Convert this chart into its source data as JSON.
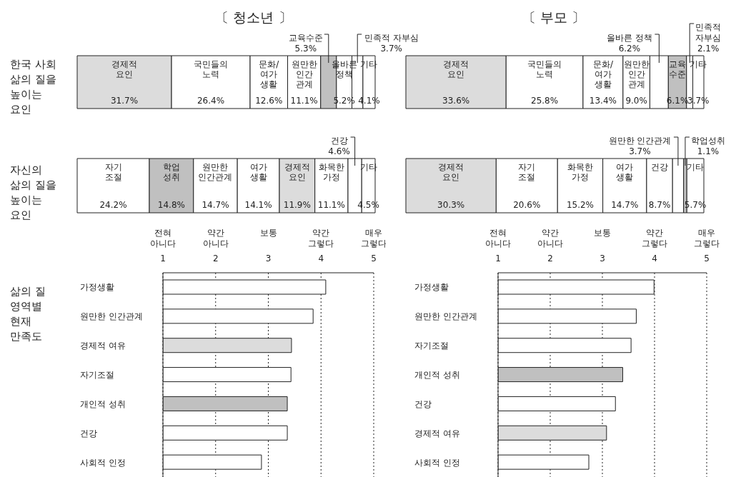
{
  "chart_data": [
    {
      "type": "bar",
      "orientation": "horizontal",
      "stacked": true,
      "title": "〔 청소년 〕",
      "ylabel": "한국 사회\n삶의 질을\n높이는\n요인",
      "categories": [
        null
      ],
      "series": [
        {
          "name": "경제적\n요인",
          "color": "#dcdcdc",
          "values": [
            31.7
          ],
          "value_labels": [
            "31.7%"
          ]
        },
        {
          "name": "국민들의\n노력",
          "color": "#ffffff",
          "values": [
            26.4
          ],
          "value_labels": [
            "26.4%"
          ]
        },
        {
          "name": "문화/\n여가\n생활",
          "color": "#ffffff",
          "values": [
            12.6
          ],
          "value_labels": [
            "12.6%"
          ]
        },
        {
          "name": "원만한\n인간\n관계",
          "color": "#ffffff",
          "values": [
            11.1
          ],
          "value_labels": [
            "11.1%"
          ]
        },
        {
          "name": "교육수준",
          "color": "#c0c0c0",
          "values": [
            5.3
          ],
          "value_labels": [
            "5.3%"
          ]
        },
        {
          "name": "올바른\n정책",
          "color": "#ffffff",
          "values": [
            5.2
          ],
          "value_labels": [
            "5.2%"
          ]
        },
        {
          "name": "민족적 자부심",
          "color": "#ffffff",
          "values": [
            3.7
          ],
          "value_labels": [
            "3.7%"
          ]
        },
        {
          "name": "기타",
          "color": "#ffffff",
          "values": [
            4.1
          ],
          "value_labels": [
            "4.1%"
          ]
        }
      ]
    },
    {
      "type": "bar",
      "orientation": "horizontal",
      "stacked": true,
      "title": "〔 부모 〕",
      "categories": [
        null
      ],
      "series": [
        {
          "name": "경제적\n요인",
          "color": "#dcdcdc",
          "values": [
            33.6
          ],
          "value_labels": [
            "33.6%"
          ]
        },
        {
          "name": "국민들의\n노력",
          "color": "#ffffff",
          "values": [
            25.8
          ],
          "value_labels": [
            "25.8%"
          ]
        },
        {
          "name": "문화/\n여가\n생활",
          "color": "#ffffff",
          "values": [
            13.4
          ],
          "value_labels": [
            "13.4%"
          ]
        },
        {
          "name": "원만한\n인간\n관계",
          "color": "#ffffff",
          "values": [
            9.0
          ],
          "value_labels": [
            "9.0%"
          ]
        },
        {
          "name": "올바른 정책",
          "color": "#ffffff",
          "values": [
            6.2
          ],
          "value_labels": [
            "6.2%"
          ]
        },
        {
          "name": "교육\n수준",
          "color": "#c0c0c0",
          "values": [
            6.1
          ],
          "value_labels": [
            "6.1%"
          ]
        },
        {
          "name": "민족적\n자부심",
          "color": "#ffffff",
          "values": [
            2.1
          ],
          "value_labels": [
            "2.1%"
          ]
        },
        {
          "name": "기타",
          "color": "#ffffff",
          "values": [
            3.7
          ],
          "value_labels": [
            "3.7%"
          ]
        }
      ]
    },
    {
      "type": "bar",
      "orientation": "horizontal",
      "stacked": true,
      "ylabel": "자신의\n삶의 질을\n높이는\n요인",
      "categories": [
        null
      ],
      "series": [
        {
          "name": "자기\n조절",
          "color": "#ffffff",
          "values": [
            24.2
          ],
          "value_labels": [
            "24.2%"
          ]
        },
        {
          "name": "학업\n성취",
          "color": "#c0c0c0",
          "values": [
            14.8
          ],
          "value_labels": [
            "14.8%"
          ]
        },
        {
          "name": "원만한\n인간관계",
          "color": "#ffffff",
          "values": [
            14.7
          ],
          "value_labels": [
            "14.7%"
          ]
        },
        {
          "name": "여가\n생활",
          "color": "#ffffff",
          "values": [
            14.1
          ],
          "value_labels": [
            "14.1%"
          ]
        },
        {
          "name": "경제적\n요인",
          "color": "#dcdcdc",
          "values": [
            11.9
          ],
          "value_labels": [
            "11.9%"
          ]
        },
        {
          "name": "화목한\n가정",
          "color": "#ffffff",
          "values": [
            11.1
          ],
          "value_labels": [
            "11.1%"
          ]
        },
        {
          "name": "건강",
          "color": "#ffffff",
          "values": [
            4.6
          ],
          "value_labels": [
            "4.6%"
          ]
        },
        {
          "name": "기타",
          "color": "#ffffff",
          "values": [
            4.5
          ],
          "value_labels": [
            "4.5%"
          ]
        }
      ]
    },
    {
      "type": "bar",
      "orientation": "horizontal",
      "stacked": true,
      "categories": [
        null
      ],
      "series": [
        {
          "name": "경제적\n요인",
          "color": "#dcdcdc",
          "values": [
            30.3
          ],
          "value_labels": [
            "30.3%"
          ]
        },
        {
          "name": "자기\n조절",
          "color": "#ffffff",
          "values": [
            20.6
          ],
          "value_labels": [
            "20.6%"
          ]
        },
        {
          "name": "화목한\n가정",
          "color": "#ffffff",
          "values": [
            15.2
          ],
          "value_labels": [
            "15.2%"
          ]
        },
        {
          "name": "여가\n생활",
          "color": "#ffffff",
          "values": [
            14.7
          ],
          "value_labels": [
            "14.7%"
          ]
        },
        {
          "name": "건강",
          "color": "#ffffff",
          "values": [
            8.7
          ],
          "value_labels": [
            "8.7%"
          ]
        },
        {
          "name": "원만한 인간관계",
          "color": "#ffffff",
          "values": [
            3.7
          ],
          "value_labels": [
            "3.7%"
          ]
        },
        {
          "name": "학업성취",
          "color": "#c0c0c0",
          "values": [
            1.1
          ],
          "value_labels": [
            "1.1%"
          ]
        },
        {
          "name": "기타",
          "color": "#ffffff",
          "values": [
            5.7
          ],
          "value_labels": [
            "5.7%"
          ]
        }
      ]
    },
    {
      "type": "bar",
      "orientation": "horizontal",
      "ylabel": "삶의 질\n영역별\n현재\n만족도",
      "categories": [
        "가정생활",
        "원만한 인간관계",
        "경제적 여유",
        "자기조절",
        "개인적 성취",
        "건강",
        "사회적 인정"
      ],
      "values": [
        4.09,
        3.85,
        3.44,
        3.43,
        3.36,
        3.36,
        2.87
      ],
      "colors": [
        "#ffffff",
        "#ffffff",
        "#dcdcdc",
        "#ffffff",
        "#c0c0c0",
        "#ffffff",
        "#ffffff"
      ],
      "xlim": [
        1,
        5
      ],
      "xticks": [
        1,
        2,
        3,
        4,
        5
      ],
      "annotations": [
        "전혀\n아니다",
        "약간\n아니다",
        "보통",
        "약간\n그렇다",
        "매우\n그렇다"
      ],
      "grid": "x"
    },
    {
      "type": "bar",
      "orientation": "horizontal",
      "categories": [
        "가정생활",
        "원만한 인간관계",
        "자기조절",
        "개인적 성취",
        "건강",
        "경제적 여유",
        "사회적 인정"
      ],
      "values": [
        3.99,
        3.65,
        3.55,
        3.39,
        3.25,
        3.08,
        2.74
      ],
      "colors": [
        "#ffffff",
        "#ffffff",
        "#ffffff",
        "#c0c0c0",
        "#ffffff",
        "#dcdcdc",
        "#ffffff"
      ],
      "xlim": [
        1,
        5
      ],
      "xticks": [
        1,
        2,
        3,
        4,
        5
      ],
      "annotations": [
        "전혀\n아니다",
        "약간\n아니다",
        "보통",
        "약간\n그렇다",
        "매우\n그렇다"
      ],
      "grid": "x"
    }
  ]
}
